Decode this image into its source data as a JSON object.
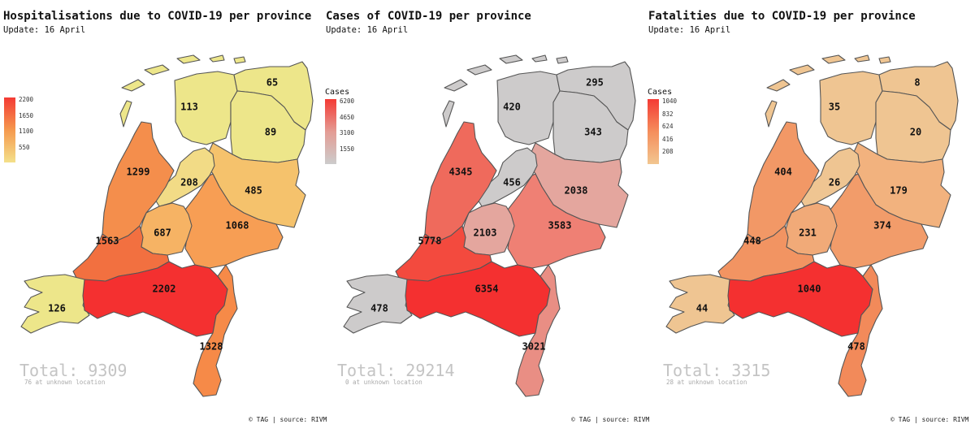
{
  "panels": [
    {
      "title": "Hospitalisations due to COVID-19 per province",
      "update": "Update: 16 April",
      "legend_title": "",
      "legend_ticks": [
        "2200",
        "1650",
        "1100",
        "550"
      ],
      "legend_colors": [
        "#f43a34",
        "#f5994e",
        "#f4e08a"
      ],
      "total": "Total: 9309",
      "unknown": "76 at unknown location",
      "credit": "© TAG | source: RIVM",
      "provinces": {
        "groningen": {
          "value": "65",
          "color": "#ede68a"
        },
        "friesland": {
          "value": "113",
          "color": "#ede68a"
        },
        "drenthe": {
          "value": "89",
          "color": "#ede68a"
        },
        "flevoland": {
          "value": "208",
          "color": "#f2db86"
        },
        "overijssel": {
          "value": "485",
          "color": "#f5c26c"
        },
        "nholland": {
          "value": "1299",
          "color": "#f48e4c"
        },
        "gelderland": {
          "value": "1068",
          "color": "#f79e54"
        },
        "utrecht": {
          "value": "687",
          "color": "#f6b364"
        },
        "zholland": {
          "value": "1563",
          "color": "#f27040"
        },
        "zeeland": {
          "value": "126",
          "color": "#ede68a"
        },
        "nbrabant": {
          "value": "2202",
          "color": "#f43030"
        },
        "limburg": {
          "value": "1328",
          "color": "#f68a48"
        }
      }
    },
    {
      "title": "Cases of COVID-19 per province",
      "update": "Update: 16 April",
      "legend_title": "Cases",
      "legend_ticks": [
        "6200",
        "4650",
        "3100",
        "1550"
      ],
      "legend_colors": [
        "#f43a34",
        "#e49c94",
        "#cccccc"
      ],
      "total": "Total: 29214",
      "unknown": "0 at unknown location",
      "credit": "© TAG | source: RIVM",
      "provinces": {
        "groningen": {
          "value": "295",
          "color": "#cdcbcb"
        },
        "friesland": {
          "value": "420",
          "color": "#cdcbcb"
        },
        "drenthe": {
          "value": "343",
          "color": "#cdcbcb"
        },
        "flevoland": {
          "value": "456",
          "color": "#cdcbcb"
        },
        "overijssel": {
          "value": "2038",
          "color": "#e4a69e"
        },
        "nholland": {
          "value": "4345",
          "color": "#ef6a5c"
        },
        "gelderland": {
          "value": "3583",
          "color": "#ef8074"
        },
        "utrecht": {
          "value": "2103",
          "color": "#e4a69e"
        },
        "zholland": {
          "value": "5778",
          "color": "#f34a3e"
        },
        "zeeland": {
          "value": "478",
          "color": "#cdcbcb"
        },
        "nbrabant": {
          "value": "6354",
          "color": "#f43030"
        },
        "limburg": {
          "value": "3021",
          "color": "#e98e84"
        }
      }
    },
    {
      "title": "Fatalities due to COVID-19 per province",
      "update": "Update: 16 April",
      "legend_title": "Cases",
      "legend_ticks": [
        "1040",
        "832",
        "624",
        "416",
        "208"
      ],
      "legend_colors": [
        "#f43a34",
        "#f58e5c",
        "#f2c690"
      ],
      "total": "Total: 3315",
      "unknown": "28 at unknown location",
      "credit": "© TAG | source: RIVM",
      "provinces": {
        "groningen": {
          "value": "8",
          "color": "#efc592"
        },
        "friesland": {
          "value": "35",
          "color": "#efc592"
        },
        "drenthe": {
          "value": "20",
          "color": "#efc592"
        },
        "flevoland": {
          "value": "26",
          "color": "#efc592"
        },
        "overijssel": {
          "value": "179",
          "color": "#f2b27e"
        },
        "nholland": {
          "value": "404",
          "color": "#f29866"
        },
        "gelderland": {
          "value": "374",
          "color": "#f29c6a"
        },
        "utrecht": {
          "value": "231",
          "color": "#f1aa78"
        },
        "zholland": {
          "value": "448",
          "color": "#f29462"
        },
        "zeeland": {
          "value": "44",
          "color": "#efc592"
        },
        "nbrabant": {
          "value": "1040",
          "color": "#f43030"
        },
        "limburg": {
          "value": "478",
          "color": "#f28a5a"
        }
      }
    }
  ]
}
